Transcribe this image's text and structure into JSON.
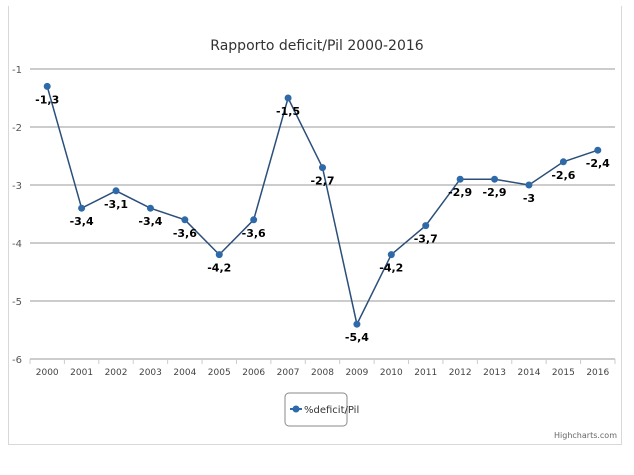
{
  "chart_data": {
    "type": "line",
    "title": "Rapporto deficit/Pil 2000-2016",
    "xlabel": "",
    "ylabel": "",
    "categories": [
      "2000",
      "2001",
      "2002",
      "2003",
      "2004",
      "2005",
      "2006",
      "2007",
      "2008",
      "2009",
      "2010",
      "2011",
      "2012",
      "2013",
      "2014",
      "2015",
      "2016"
    ],
    "series": [
      {
        "name": "%deficit/Pil",
        "values": [
          -1.3,
          -3.4,
          -3.1,
          -3.4,
          -3.6,
          -4.2,
          -3.6,
          -1.5,
          -2.7,
          -5.4,
          -4.2,
          -3.7,
          -2.9,
          -2.9,
          -3,
          -2.6,
          -2.4
        ],
        "data_labels": [
          "-1,3",
          "-3,4",
          "-3,1",
          "-3,4",
          "-3,6",
          "-4,2",
          "-3,6",
          "-1,5",
          "-2,7",
          "-5,4",
          "-4,2",
          "-3,7",
          "-2,9",
          "-2,9",
          "-3",
          "-2,6",
          "-2,4"
        ]
      }
    ],
    "ylim": [
      -6,
      -1
    ],
    "yticks": [
      "-1",
      "-2",
      "-3",
      "-4",
      "-5",
      "-6"
    ],
    "grid": true,
    "legend_position": "bottom-center",
    "colors": {
      "series": "#2f6aa8",
      "line": "#2b4f7a",
      "grid": "#9a9a9a"
    },
    "credits": "Highcharts.com"
  }
}
